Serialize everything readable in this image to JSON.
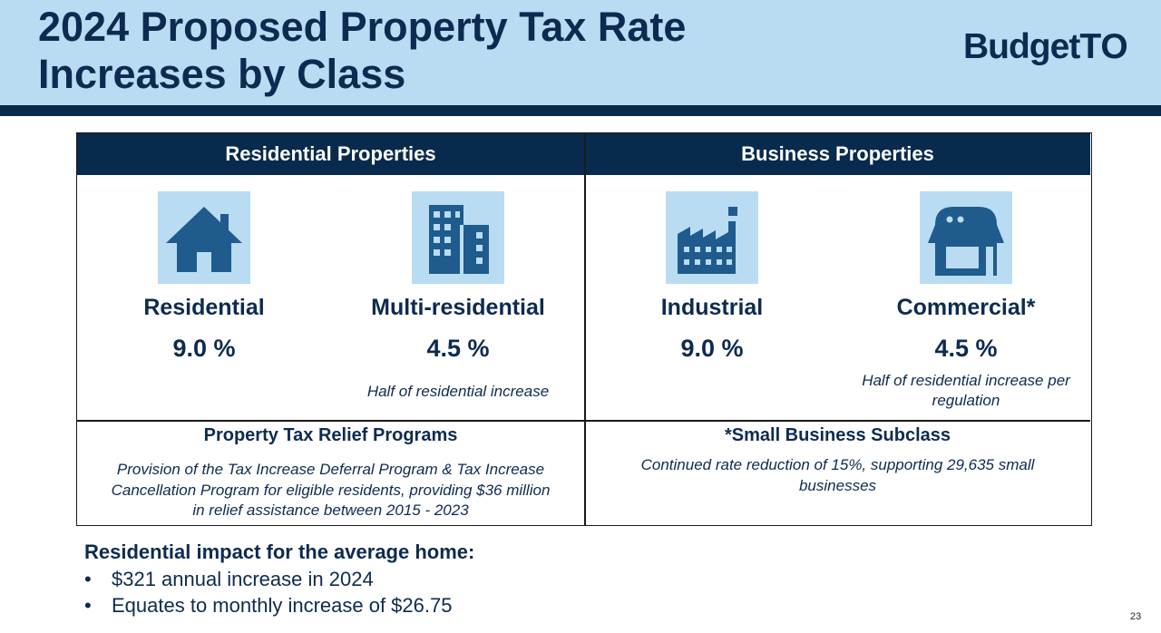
{
  "slide": {
    "title_line1": "2024 Proposed Property Tax Rate",
    "title_line2": "Increases by Class",
    "logo_prefix": "Budget",
    "logo_suffix": "TO",
    "page_number": "23"
  },
  "columns": {
    "residential_header": "Residential Properties",
    "business_header": "Business Properties"
  },
  "classes": [
    {
      "label": "Residential",
      "rate": "9.0 %",
      "note": "",
      "icon": "house-icon"
    },
    {
      "label": "Multi-residential",
      "rate": "4.5 %",
      "note": "Half of residential increase",
      "icon": "apartment-building-icon"
    },
    {
      "label": "Industrial",
      "rate": "9.0 %",
      "note": "",
      "icon": "factory-icon"
    },
    {
      "label": "Commercial*",
      "rate": "4.5 %",
      "note_line1": "Half of residential increase per",
      "note_line2": "regulation",
      "icon": "storefront-icon"
    }
  ],
  "relief": {
    "title": "Property Tax Relief Programs",
    "line1": "Provision of the Tax Increase Deferral Program & Tax Increase",
    "line2": "Cancellation Program for eligible residents, providing $36 million",
    "line3": "in relief assistance between 2015 - 2023"
  },
  "small_business": {
    "title": "*Small Business Subclass",
    "line1": "Continued rate reduction of 15%, supporting 29,635 small",
    "line2": "businesses"
  },
  "impact": {
    "heading": "Residential impact for the average home:",
    "bullets": [
      "$321 annual increase in 2024",
      "Equates to monthly increase of $26.75"
    ]
  },
  "colors": {
    "header_bg": "#b9dcf3",
    "navy": "#082a4d",
    "icon_fill": "#1f5b8d"
  }
}
